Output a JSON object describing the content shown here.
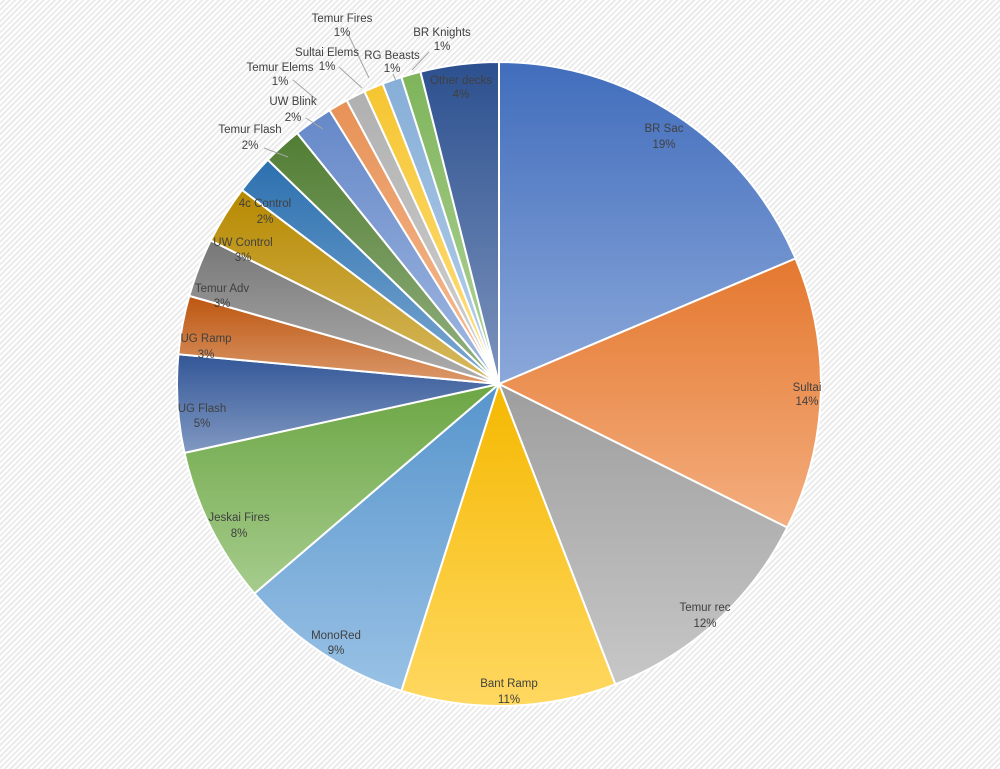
{
  "chart_data": {
    "type": "pie",
    "title": "",
    "legend": "none",
    "start_angle_deg": 0,
    "direction": "clockwise",
    "label_format": "name + percent",
    "label_text_color": "#404040",
    "slice_border_color": "#ffffff",
    "background_pattern": "light diagonal stripes",
    "categories": [
      "BR Sac",
      "Sultai",
      "Temur rec",
      "Bant Ramp",
      "MonoRed",
      "Jeskai Fires",
      "UG Flash",
      "UG Ramp",
      "Temur Adv",
      "UW Control",
      "4c Control",
      "Temur Flash",
      "UW Blink",
      "Temur Elems",
      "Sultai Elems",
      "Temur Fires",
      "RG Beasts",
      "BR Knights",
      "Other decks"
    ],
    "values": [
      19,
      14,
      12,
      11,
      9,
      8,
      5,
      3,
      3,
      3,
      2,
      2,
      2,
      1,
      1,
      1,
      1,
      1,
      4
    ],
    "slices": [
      {
        "label": "BR Sac",
        "pct_text": "19%",
        "value": 19,
        "color": "#4472C4",
        "label_inside": true
      },
      {
        "label": "Sultai",
        "pct_text": "14%",
        "value": 14,
        "color": "#ED7D31",
        "label_inside": true
      },
      {
        "label": "Temur rec",
        "pct_text": "12%",
        "value": 12,
        "color": "#A5A5A5",
        "label_inside": true
      },
      {
        "label": "Bant Ramp",
        "pct_text": "11%",
        "value": 11,
        "color": "#FFC000",
        "label_inside": true
      },
      {
        "label": "MonoRed",
        "pct_text": "9%",
        "value": 9,
        "color": "#5B9BD5",
        "label_inside": true
      },
      {
        "label": "Jeskai Fires",
        "pct_text": "8%",
        "value": 8,
        "color": "#70AD47",
        "label_inside": true
      },
      {
        "label": "UG Flash",
        "pct_text": "5%",
        "value": 5,
        "color": "#345A9D",
        "label_inside": true
      },
      {
        "label": "UG Ramp",
        "pct_text": "3%",
        "value": 3,
        "color": "#C55A11",
        "label_inside": true
      },
      {
        "label": "Temur Adv",
        "pct_text": "3%",
        "value": 3,
        "color": "#7C7C7C",
        "label_inside": true
      },
      {
        "label": "UW Control",
        "pct_text": "3%",
        "value": 3,
        "color": "#BF8F00",
        "label_inside": true
      },
      {
        "label": "4c Control",
        "pct_text": "2%",
        "value": 2,
        "color": "#2E75B6",
        "label_inside": true
      },
      {
        "label": "Temur Flash",
        "pct_text": "2%",
        "value": 2,
        "color": "#548235",
        "label_inside": false
      },
      {
        "label": "UW Blink",
        "pct_text": "2%",
        "value": 2,
        "color": "#698ED0",
        "label_inside": false
      },
      {
        "label": "Temur Elems",
        "pct_text": "1%",
        "value": 1,
        "color": "#F1975A",
        "label_inside": false
      },
      {
        "label": "Sultai Elems",
        "pct_text": "1%",
        "value": 1,
        "color": "#B7B7B7",
        "label_inside": false
      },
      {
        "label": "Temur Fires",
        "pct_text": "1%",
        "value": 1,
        "color": "#FFCD33",
        "label_inside": false
      },
      {
        "label": "RG Beasts",
        "pct_text": "1%",
        "value": 1,
        "color": "#8CB5E0",
        "label_inside": false
      },
      {
        "label": "BR Knights",
        "pct_text": "1%",
        "value": 1,
        "color": "#83BC5E",
        "label_inside": false
      },
      {
        "label": "Other decks",
        "pct_text": "4%",
        "value": 4,
        "color": "#2E5395",
        "label_inside": true
      }
    ]
  }
}
